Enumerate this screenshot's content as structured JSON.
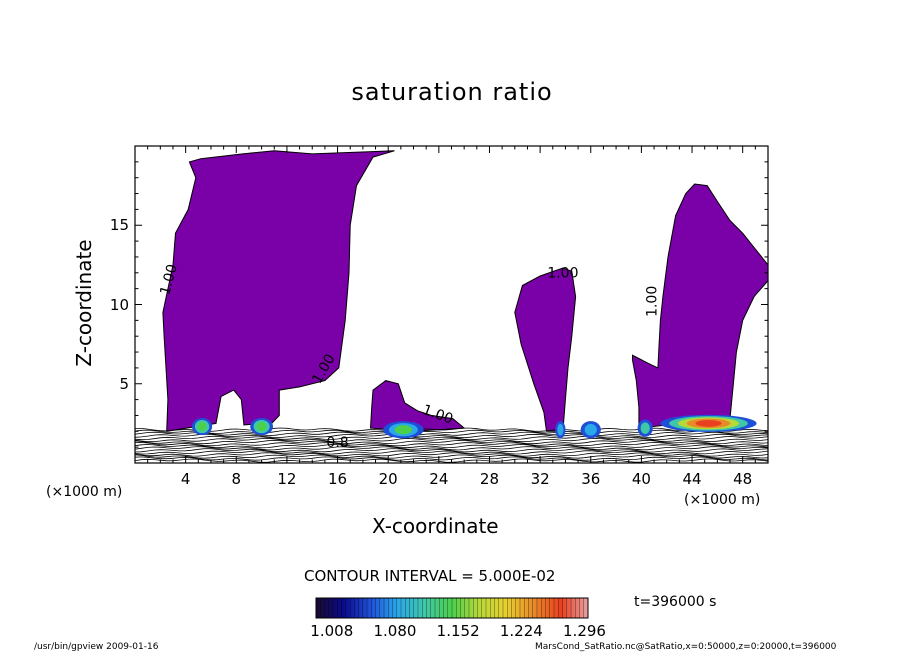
{
  "chart_data": {
    "type": "contour",
    "title": "saturation ratio",
    "xlabel": "X-coordinate",
    "ylabel": "Z-coordinate",
    "x_unit_label": "(×1000 m)",
    "xlim": [
      0,
      50
    ],
    "ylim": [
      0,
      20
    ],
    "x_ticks": [
      4,
      8,
      12,
      16,
      20,
      24,
      28,
      32,
      36,
      40,
      44,
      48
    ],
    "y_ticks": [
      5,
      10,
      15
    ],
    "contour_interval_text": "CONTOUR INTERVAL = 5.000E-02",
    "time_text": "t=396000 s",
    "contour_labels": [
      {
        "text": "1.00",
        "x": 3.0,
        "z": 11.5,
        "angle": -75
      },
      {
        "text": "1.00",
        "x": 15.2,
        "z": 5.8,
        "angle": -60
      },
      {
        "text": "1.00",
        "x": 23.8,
        "z": 2.8,
        "angle": 20
      },
      {
        "text": "1.00",
        "x": 33.8,
        "z": 11.7,
        "angle": 0
      },
      {
        "text": "1.00",
        "x": 41.2,
        "z": 10.2,
        "angle": -90
      },
      {
        "text": "0.8",
        "x": 16.0,
        "z": 1.0,
        "angle": 0
      }
    ],
    "cloud_regions": [
      {
        "name": "cloud-1",
        "outline": [
          [
            2.5,
            2
          ],
          [
            2.6,
            4
          ],
          [
            2.3,
            8
          ],
          [
            2.2,
            9.5
          ],
          [
            3.0,
            12.5
          ],
          [
            3.2,
            14.5
          ],
          [
            4.2,
            16
          ],
          [
            4.8,
            18.0
          ],
          [
            4.3,
            19
          ],
          [
            5.2,
            19.2
          ],
          [
            8.5,
            19.5
          ],
          [
            11.0,
            19.7
          ],
          [
            14.0,
            19.5
          ],
          [
            20.5,
            19.7
          ],
          [
            18.8,
            19.3
          ],
          [
            17.5,
            17.5
          ],
          [
            17.0,
            15
          ],
          [
            16.9,
            12
          ],
          [
            16.6,
            9
          ],
          [
            16.1,
            6
          ],
          [
            15.0,
            5.2
          ],
          [
            13.0,
            4.8
          ],
          [
            11.4,
            4.6
          ],
          [
            11.4,
            3
          ],
          [
            10.8,
            2.5
          ],
          [
            10.0,
            2.5
          ],
          [
            8.6,
            2.4
          ],
          [
            8.4,
            4.0
          ],
          [
            7.8,
            4.6
          ],
          [
            6.8,
            4.2
          ],
          [
            6.4,
            2.5
          ]
        ]
      },
      {
        "name": "cloud-2",
        "outline": [
          [
            18.6,
            2.2
          ],
          [
            18.7,
            3.5
          ],
          [
            18.8,
            4.6
          ],
          [
            19.8,
            5.2
          ],
          [
            20.8,
            5.0
          ],
          [
            21.3,
            3.8
          ],
          [
            22.3,
            3.3
          ],
          [
            23.4,
            3.0
          ],
          [
            25.1,
            2.8
          ],
          [
            26.0,
            2.2
          ],
          [
            22.0,
            2.0
          ]
        ]
      },
      {
        "name": "cloud-3",
        "outline": [
          [
            32.5,
            2.0
          ],
          [
            32.3,
            3.2
          ],
          [
            31.5,
            5.0
          ],
          [
            30.5,
            7.5
          ],
          [
            30.0,
            9.5
          ],
          [
            30.6,
            11.2
          ],
          [
            32.0,
            11.8
          ],
          [
            33.8,
            12.3
          ],
          [
            34.5,
            12.1
          ],
          [
            34.8,
            10.5
          ],
          [
            34.5,
            8.0
          ],
          [
            34.2,
            6.0
          ],
          [
            34.0,
            4.0
          ],
          [
            33.8,
            2.0
          ]
        ]
      },
      {
        "name": "cloud-4",
        "outline": [
          [
            39.8,
            2.2
          ],
          [
            39.8,
            3.5
          ],
          [
            39.6,
            5.2
          ],
          [
            39.3,
            6.5
          ],
          [
            39.3,
            6.8
          ],
          [
            40.5,
            6.3
          ],
          [
            41.3,
            6.0
          ],
          [
            41.4,
            7.5
          ],
          [
            41.5,
            9.0
          ],
          [
            41.7,
            10.5
          ],
          [
            42.1,
            13.0
          ],
          [
            42.7,
            15.6
          ],
          [
            43.5,
            17.0
          ],
          [
            44.2,
            17.6
          ],
          [
            45.2,
            17.5
          ],
          [
            46.0,
            16.5
          ],
          [
            47.0,
            15.3
          ],
          [
            48.0,
            14.5
          ],
          [
            49.0,
            13.5
          ],
          [
            50.0,
            12.5
          ],
          [
            50.0,
            11.5
          ],
          [
            48.9,
            10.5
          ],
          [
            48.0,
            9.0
          ],
          [
            47.5,
            7.0
          ],
          [
            47.2,
            4.5
          ],
          [
            47.0,
            2.8
          ],
          [
            45.0,
            2.6
          ],
          [
            42.0,
            2.4
          ]
        ]
      }
    ],
    "colorbar": {
      "labels": [
        "1.008",
        "1.080",
        "1.152",
        "1.224",
        "1.296"
      ],
      "min": 0.99,
      "max": 1.3,
      "colors": [
        "#1a0a2e",
        "#0a0a8a",
        "#1f4fd8",
        "#2aa8e8",
        "#3fc8a8",
        "#4cd04c",
        "#b8d83a",
        "#e8d030",
        "#e88a28",
        "#e84020",
        "#e8a0a0"
      ]
    }
  },
  "footer": {
    "left": "/usr/bin/gpview   2009-01-16",
    "right": "MarsCond_SatRatio.nc@SatRatio,x=0:50000,z=0:20000,t=396000"
  },
  "colors": {
    "cloud_fill": "#7a00a8",
    "contour_line": "#000000"
  }
}
